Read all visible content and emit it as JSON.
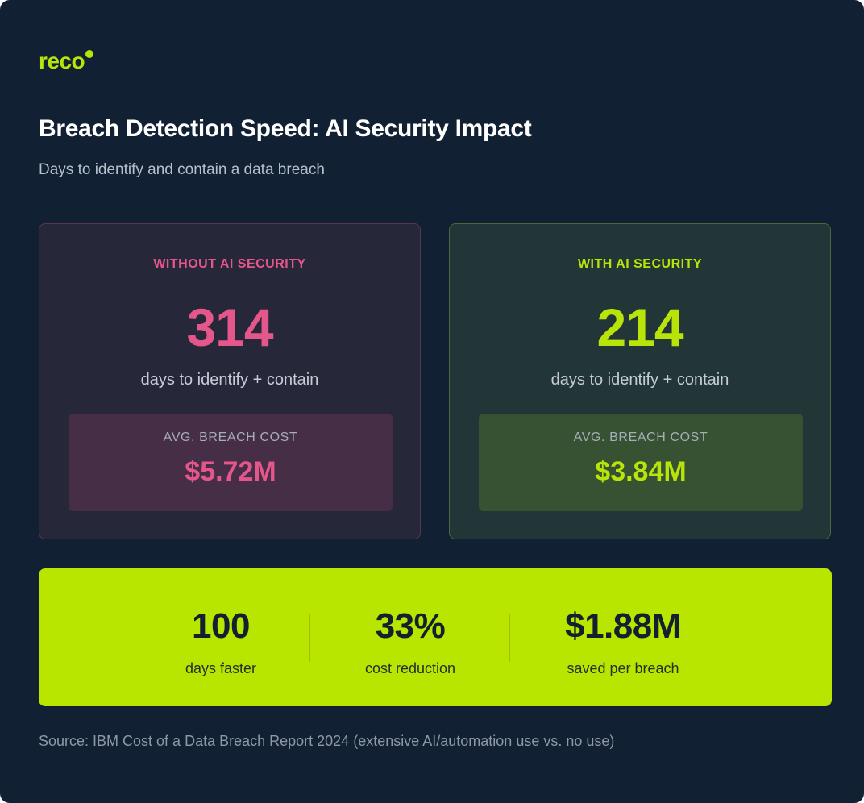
{
  "brand": {
    "logo_text": "reco",
    "accent_color": "#b8e40a"
  },
  "header": {
    "title": "Breach Detection Speed: AI Security Impact",
    "subtitle": "Days to identify and contain a data breach"
  },
  "comparison": {
    "without_ai": {
      "label": "WITHOUT AI SECURITY",
      "days": "314",
      "days_caption": "days to identify + contain",
      "cost_label": "AVG. BREACH COST",
      "cost_value": "$5.72M",
      "color": "#e5568b"
    },
    "with_ai": {
      "label": "WITH AI SECURITY",
      "days": "214",
      "days_caption": "days to identify + contain",
      "cost_label": "AVG. BREACH COST",
      "cost_value": "$3.84M",
      "color": "#b8e40a"
    }
  },
  "summary": {
    "stats": [
      {
        "value": "100",
        "label": "days faster"
      },
      {
        "value": "33%",
        "label": "cost reduction"
      },
      {
        "value": "$1.88M",
        "label": "saved per breach"
      }
    ],
    "background_color": "#b8e600"
  },
  "footer": {
    "source": "Source: IBM Cost of a Data Breach Report 2024 (extensive AI/automation use vs. no use)"
  }
}
